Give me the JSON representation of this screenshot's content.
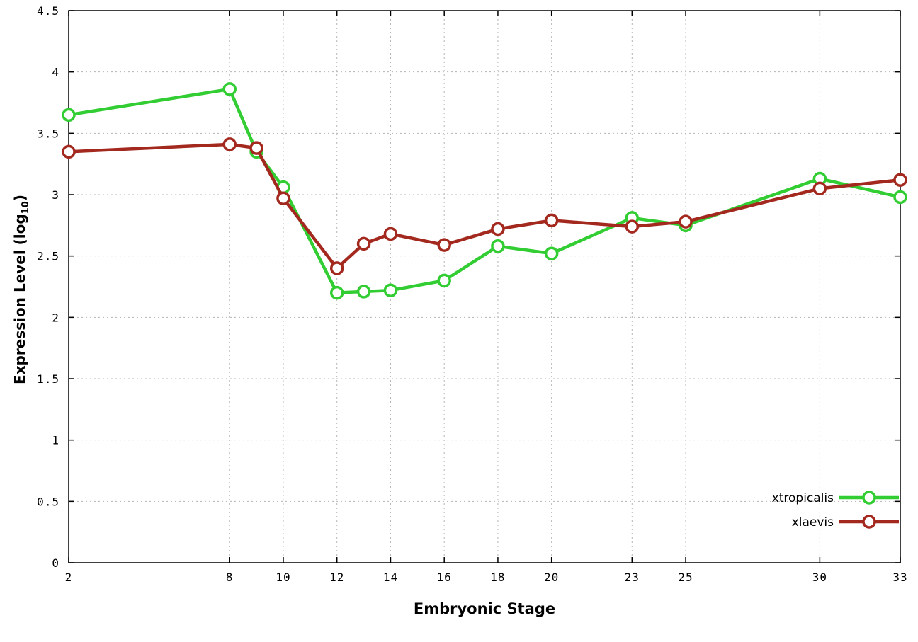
{
  "chart_data": {
    "type": "line",
    "x": [
      2,
      8,
      9,
      10,
      12,
      13,
      14,
      16,
      18,
      20,
      23,
      25,
      30,
      33
    ],
    "series": [
      {
        "name": "xtropicalis",
        "color": "#32cd32",
        "values": [
          3.65,
          3.86,
          3.35,
          3.06,
          2.2,
          2.21,
          2.22,
          2.3,
          2.58,
          2.52,
          2.81,
          2.75,
          3.13,
          2.98
        ]
      },
      {
        "name": "xlaevis",
        "color": "#a3291f",
        "values": [
          3.35,
          3.41,
          3.38,
          2.97,
          2.4,
          2.6,
          2.68,
          2.59,
          2.72,
          2.79,
          2.74,
          2.78,
          3.05,
          3.12
        ]
      }
    ],
    "xlabel": "Embryonic Stage",
    "ylabel_parts": {
      "prefix": "Expression Level (log",
      "subscript": "10",
      "suffix": ")"
    },
    "xticks": [
      2,
      8,
      10,
      12,
      14,
      16,
      18,
      20,
      23,
      25,
      30,
      33
    ],
    "yticks": [
      0,
      0.5,
      1,
      1.5,
      2,
      2.5,
      3,
      3.5,
      4,
      4.5
    ],
    "xlim": [
      2,
      33
    ],
    "ylim": [
      0,
      4.5
    ],
    "grid": true,
    "legend_position": "bottom-right",
    "marker": "open-circle",
    "grid_color": "#b5b5b5",
    "border_color": "#000000",
    "background_color": "#ffffff"
  }
}
